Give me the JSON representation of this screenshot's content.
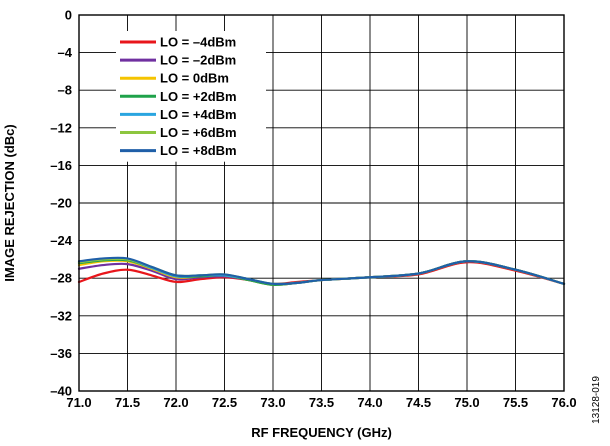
{
  "chart_data": {
    "type": "line",
    "title": "",
    "xlabel": "RF FREQUENCY (GHz)",
    "ylabel": "IMAGE REJECTION (dBc)",
    "xlim": [
      71.0,
      76.0
    ],
    "ylim": [
      -40,
      0
    ],
    "x_ticks": [
      "71.0",
      "71.5",
      "72.0",
      "72.5",
      "73.0",
      "73.5",
      "74.0",
      "74.5",
      "75.0",
      "75.5",
      "76.0"
    ],
    "y_ticks": [
      "0",
      "–4",
      "–8",
      "–12",
      "–16",
      "–20",
      "–24",
      "–28",
      "–32",
      "–36",
      "–40"
    ],
    "grid": true,
    "legend_position": "top-left",
    "figure_id": "13128-019",
    "x": [
      71.0,
      71.25,
      71.5,
      71.75,
      72.0,
      72.25,
      72.5,
      72.75,
      73.0,
      73.25,
      73.5,
      74.0,
      74.5,
      75.0,
      75.5,
      76.0
    ],
    "series": [
      {
        "name": "LO = –4dBm",
        "color": "#e8161b",
        "values": [
          -28.4,
          -27.5,
          -27.1,
          -27.7,
          -28.4,
          -28.1,
          -27.9,
          -28.2,
          -28.6,
          -28.4,
          -28.2,
          -27.9,
          -27.6,
          -26.3,
          -27.2,
          -28.6
        ]
      },
      {
        "name": "LO = –2dBm",
        "color": "#7030a0",
        "values": [
          -27.0,
          -26.6,
          -26.5,
          -27.2,
          -28.1,
          -27.9,
          -27.8,
          -28.2,
          -28.7,
          -28.5,
          -28.2,
          -27.9,
          -27.5,
          -26.2,
          -27.1,
          -28.6
        ]
      },
      {
        "name": "LO = 0dBm",
        "color": "#f5c400",
        "values": [
          -26.6,
          -26.2,
          -26.2,
          -27.0,
          -27.9,
          -27.8,
          -27.7,
          -28.2,
          -28.7,
          -28.5,
          -28.2,
          -27.9,
          -27.5,
          -26.2,
          -27.1,
          -28.6
        ]
      },
      {
        "name": "LO = +2dBm",
        "color": "#1fa24a",
        "values": [
          -26.4,
          -26.1,
          -26.1,
          -26.9,
          -27.8,
          -27.8,
          -27.7,
          -28.2,
          -28.7,
          -28.5,
          -28.2,
          -27.9,
          -27.5,
          -26.2,
          -27.1,
          -28.6
        ]
      },
      {
        "name": "LO = +4dBm",
        "color": "#2aa5e0",
        "values": [
          -26.3,
          -26.0,
          -26.0,
          -26.9,
          -27.8,
          -27.7,
          -27.7,
          -28.1,
          -28.6,
          -28.5,
          -28.2,
          -27.9,
          -27.5,
          -26.2,
          -27.1,
          -28.6
        ]
      },
      {
        "name": "LO = +6dBm",
        "color": "#8dc63f",
        "values": [
          -26.3,
          -26.0,
          -26.0,
          -26.8,
          -27.7,
          -27.7,
          -27.6,
          -28.1,
          -28.6,
          -28.5,
          -28.2,
          -27.9,
          -27.5,
          -26.2,
          -27.1,
          -28.6
        ]
      },
      {
        "name": "LO = +8dBm",
        "color": "#1f5fa8",
        "values": [
          -26.2,
          -25.9,
          -25.9,
          -26.8,
          -27.7,
          -27.7,
          -27.6,
          -28.1,
          -28.6,
          -28.5,
          -28.2,
          -27.9,
          -27.5,
          -26.2,
          -27.1,
          -28.6
        ]
      }
    ]
  }
}
